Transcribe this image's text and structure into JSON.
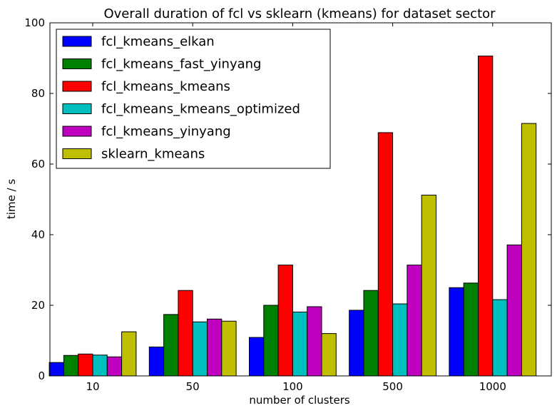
{
  "chart_data": {
    "type": "bar",
    "title": "Overall duration of fcl vs sklearn (kmeans) for dataset sector",
    "xlabel": "number of clusters",
    "ylabel": "time / s",
    "ylim": [
      0,
      100
    ],
    "yticks": [
      "0",
      "20",
      "40",
      "60",
      "80",
      "100"
    ],
    "categories": [
      "10",
      "50",
      "100",
      "500",
      "1000"
    ],
    "legend_position": "top-left",
    "grid": false,
    "series": [
      {
        "name": "fcl_kmeans_elkan",
        "color": "#0000ff",
        "values": [
          3.8,
          8.2,
          10.9,
          18.6,
          25.0
        ]
      },
      {
        "name": "fcl_kmeans_fast_yinyang",
        "color": "#008000",
        "values": [
          5.8,
          17.4,
          20.0,
          24.2,
          26.3
        ]
      },
      {
        "name": "fcl_kmeans_kmeans",
        "color": "#ff0000",
        "values": [
          6.2,
          24.2,
          31.4,
          68.9,
          90.6
        ]
      },
      {
        "name": "fcl_kmeans_kmeans_optimized",
        "color": "#00bfbf",
        "values": [
          5.9,
          15.3,
          18.1,
          20.4,
          21.6
        ]
      },
      {
        "name": "fcl_kmeans_yinyang",
        "color": "#bf00bf",
        "values": [
          5.4,
          16.1,
          19.6,
          31.4,
          37.1
        ]
      },
      {
        "name": "sklearn_kmeans",
        "color": "#bfbf00",
        "values": [
          12.5,
          15.5,
          12.0,
          51.2,
          71.5
        ]
      }
    ]
  }
}
